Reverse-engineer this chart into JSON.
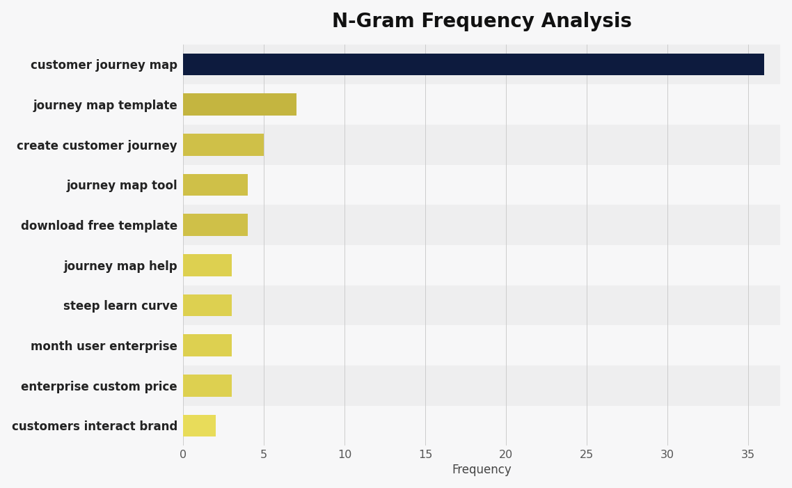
{
  "title": "N-Gram Frequency Analysis",
  "categories": [
    "customers interact brand",
    "enterprise custom price",
    "month user enterprise",
    "steep learn curve",
    "journey map help",
    "download free template",
    "journey map tool",
    "create customer journey",
    "journey map template",
    "customer journey map"
  ],
  "values": [
    2,
    3,
    3,
    3,
    3,
    4,
    4,
    5,
    7,
    36
  ],
  "bar_colors": [
    "#e8dc5a",
    "#ddd050",
    "#ddd050",
    "#ddd050",
    "#ddd050",
    "#cfc048",
    "#cfc048",
    "#cfc048",
    "#c4b540",
    "#0d1b3e"
  ],
  "row_bg_colors": [
    "#f7f7f8",
    "#eeeeef"
  ],
  "xlabel": "Frequency",
  "ylabel": "",
  "xlim": [
    0,
    37
  ],
  "xticks": [
    0,
    5,
    10,
    15,
    20,
    25,
    30,
    35
  ],
  "background_color": "#f7f7f8",
  "title_fontsize": 20,
  "label_fontsize": 12,
  "tick_fontsize": 11.5
}
